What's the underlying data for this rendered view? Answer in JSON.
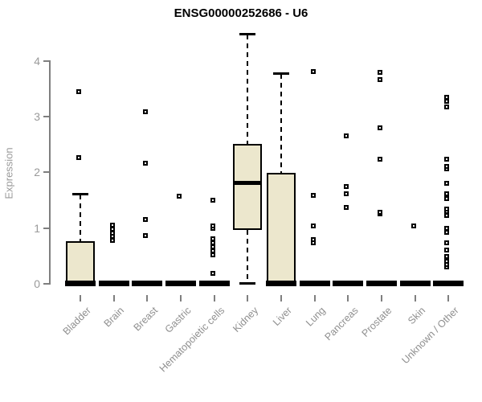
{
  "page": {
    "background": "#ffffff"
  },
  "chart_data": {
    "type": "boxplot",
    "title": "ENSG00000252686 - U6",
    "ylabel": "Expression",
    "xlabel": "",
    "yticks": [
      0,
      1,
      2,
      3,
      4
    ],
    "ylim": [
      0,
      4.6
    ],
    "grid": false,
    "legend": "none",
    "box_fill_color": "#ece7cd",
    "box_line_color": "#000000",
    "axis_color": "#7f7f7f",
    "tick_label_color": "#9a9a9a",
    "categories": [
      "Bladder",
      "Brain",
      "Breast",
      "Gastric",
      "Hematopoietic cells",
      "Kidney",
      "Liver",
      "Lung",
      "Pancreas",
      "Prostate",
      "Skin",
      "Unknown / Other"
    ],
    "boxes": [
      {
        "category": "Bladder",
        "q1": 0,
        "median": 0.02,
        "q3": 0.76,
        "whisker_low": 0,
        "whisker_high": 1.6,
        "outliers": [
          2.27,
          3.45
        ]
      },
      {
        "category": "Brain",
        "q1": 0,
        "median": 0.02,
        "q3": 0,
        "whisker_low": 0,
        "whisker_high": 0,
        "outliers": [
          0.78,
          0.85,
          0.91,
          0.98,
          1.05
        ]
      },
      {
        "category": "Breast",
        "q1": 0,
        "median": 0.02,
        "q3": 0,
        "whisker_low": 0,
        "whisker_high": 0,
        "outliers": [
          0.87,
          1.16,
          2.17,
          3.09
        ]
      },
      {
        "category": "Gastric",
        "q1": 0,
        "median": 0.02,
        "q3": 0,
        "whisker_low": 0,
        "whisker_high": 0,
        "outliers": [
          1.57
        ]
      },
      {
        "category": "Hematopoietic cells",
        "q1": 0,
        "median": 0.02,
        "q3": 0,
        "whisker_low": 0,
        "whisker_high": 0,
        "outliers": [
          0.19,
          0.52,
          0.59,
          0.66,
          0.74,
          0.81,
          0.99,
          1.04,
          1.5
        ]
      },
      {
        "category": "Kidney",
        "q1": 0.96,
        "median": 1.82,
        "q3": 2.51,
        "whisker_low": 0.02,
        "whisker_high": 4.48,
        "outliers": []
      },
      {
        "category": "Liver",
        "q1": 0,
        "median": 0.02,
        "q3": 1.99,
        "whisker_low": 0,
        "whisker_high": 3.77,
        "outliers": []
      },
      {
        "category": "Lung",
        "q1": 0,
        "median": 0.02,
        "q3": 0,
        "whisker_low": 0,
        "whisker_high": 0,
        "outliers": [
          0.73,
          0.8,
          1.04,
          1.59,
          3.81
        ]
      },
      {
        "category": "Pancreas",
        "q1": 0,
        "median": 0.02,
        "q3": 0,
        "whisker_low": 0,
        "whisker_high": 0,
        "outliers": [
          1.37,
          1.62,
          1.74,
          2.65
        ]
      },
      {
        "category": "Prostate",
        "q1": 0,
        "median": 0.02,
        "q3": 0,
        "whisker_low": 0,
        "whisker_high": 0,
        "outliers": [
          1.25,
          1.29,
          2.24,
          2.8,
          3.66,
          3.79
        ]
      },
      {
        "category": "Skin",
        "q1": 0,
        "median": 0.02,
        "q3": 0,
        "whisker_low": 0,
        "whisker_high": 0,
        "outliers": [
          1.04
        ]
      },
      {
        "category": "Unknown / Other",
        "q1": 0,
        "median": 0.02,
        "q3": 0,
        "whisker_low": 0,
        "whisker_high": 0,
        "outliers": [
          0.31,
          0.35,
          0.4,
          0.49,
          0.6,
          0.74,
          0.93,
          0.99,
          1.23,
          1.3,
          1.34,
          1.53,
          1.62,
          1.8,
          2.06,
          2.1,
          2.23,
          3.18,
          3.28,
          3.35
        ]
      }
    ]
  }
}
